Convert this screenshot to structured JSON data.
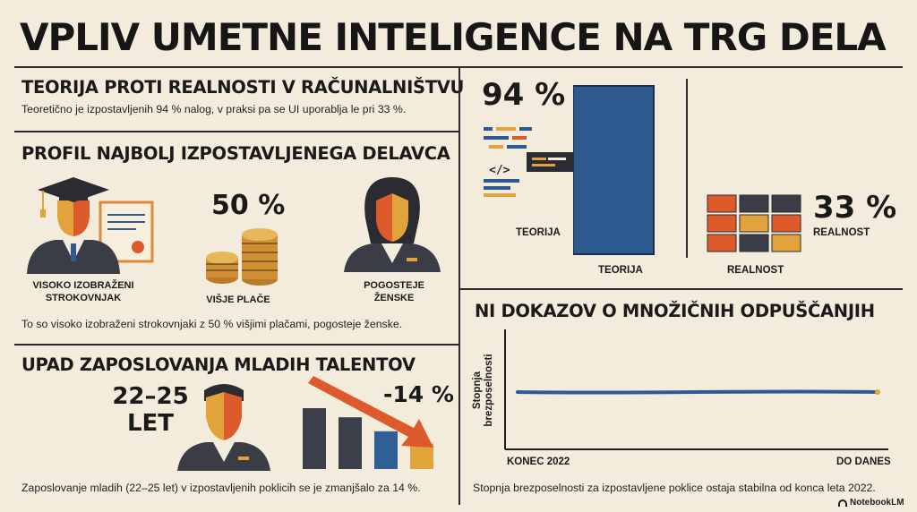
{
  "header": {
    "title": "VPLIV UMETNE INTELIGENCE NA TRG DELA"
  },
  "theory_section": {
    "heading": "TEORIJA PROTI REALNOSTI V RAČUNALNIŠTVU",
    "caption": "Teoretično je izpostavljenih 94 % nalog, v praksi pa se UI uporablja le pri 33 %.",
    "theory_value_label": "94 %",
    "theory_side_label": "TEORIJA",
    "reality_value_label": "33 %",
    "reality_side_label": "REALNOST",
    "chart_data": {
      "type": "bar",
      "categories": [
        "TEORIJA",
        "REALNOST"
      ],
      "values": [
        94,
        33
      ],
      "xlabel": "",
      "ylabel": "",
      "ylim": [
        0,
        100
      ]
    }
  },
  "profile_section": {
    "heading": "PROFIL NAJBOLJ IZPOSTAVLJENEGA DELAVCA",
    "percent": "50 %",
    "items": [
      {
        "label_line1": "VISOKO IZOBRAŽENI",
        "label_line2": "STROKOVNJAK",
        "icon": "graduate-icon"
      },
      {
        "label_line1": "VIŠJE PLAČE",
        "label_line2": "",
        "icon": "coins-icon"
      },
      {
        "label_line1": "POGOSTEJE",
        "label_line2": "ŽENSKE",
        "icon": "woman-icon"
      }
    ],
    "caption": "To so visoko izobraženi strokovnjaki z 50 % višjimi plačami, pogosteje ženske."
  },
  "youth_section": {
    "heading": "UPAD ZAPOSLOVANJA MLADIH TALENTOV",
    "age_line1": "22–25",
    "age_line2": "LET",
    "change": "-14 %",
    "caption": "Zaposlovanje mladih (22–25 let) v izpostavljenih poklicih se je zmanjšalo za 14 %.",
    "bars": [
      1.0,
      0.85,
      0.62,
      0.42
    ],
    "bar_colors": [
      "#3a3f4a",
      "#3a3f4a",
      "#2f5f94",
      "#e0a43a"
    ]
  },
  "layoffs_section": {
    "heading": "NI DOKAZOV O MNOŽIČNIH ODPUŠČANJIH",
    "ylabel_line1": "Stopnja",
    "ylabel_line2": "brezposelnosti",
    "x_start": "KONEC 2022",
    "x_end": "DO DANES",
    "caption": "Stopnja brezposelnosti za izpostavljene poklice ostaja stabilna od konca leta 2022.",
    "chart_data": {
      "type": "line",
      "x": [
        "KONEC 2022",
        "DO DANES"
      ],
      "series": [
        {
          "values": [
            1,
            1
          ]
        }
      ],
      "trend": "stable"
    }
  },
  "footer": {
    "brand": "NotebookLM"
  },
  "colors": {
    "background": "#f3ecdc",
    "navy": "#2d5a8f",
    "orange": "#dd5b2a",
    "amber": "#e6a838",
    "charcoal": "#3a3d45"
  }
}
